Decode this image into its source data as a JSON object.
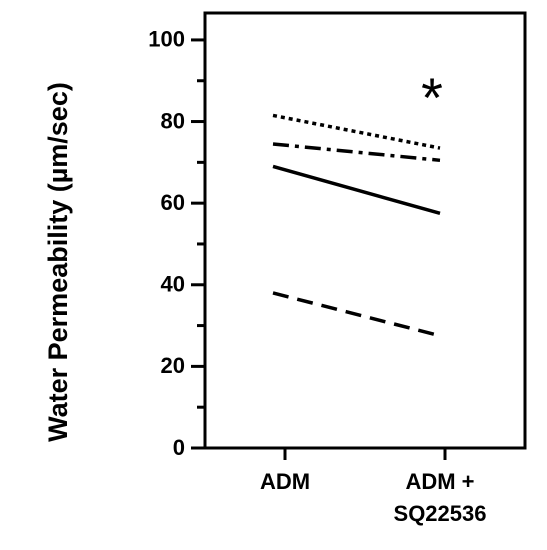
{
  "chart_data": {
    "type": "line",
    "y_label": "Water Permeability (µm/sec)",
    "categories": [
      "ADM",
      "ADM + SQ22536"
    ],
    "series": [
      {
        "color": "#000000",
        "dash": "dotted",
        "values": [
          81.5,
          73.5
        ]
      },
      {
        "color": "#000000",
        "dash": "dashdot",
        "values": [
          74.5,
          70.5
        ]
      },
      {
        "color": "#000000",
        "dash": "solid",
        "values": [
          69,
          57.5
        ]
      },
      {
        "color": "#000000",
        "dash": "dashed",
        "values": [
          38,
          27.5
        ]
      }
    ],
    "annotation": "*",
    "ylim": [
      0,
      106.6
    ],
    "yticks": [
      0,
      20,
      40,
      60,
      80,
      100
    ],
    "minor_yticks": [
      10,
      30,
      50,
      70,
      90
    ]
  }
}
